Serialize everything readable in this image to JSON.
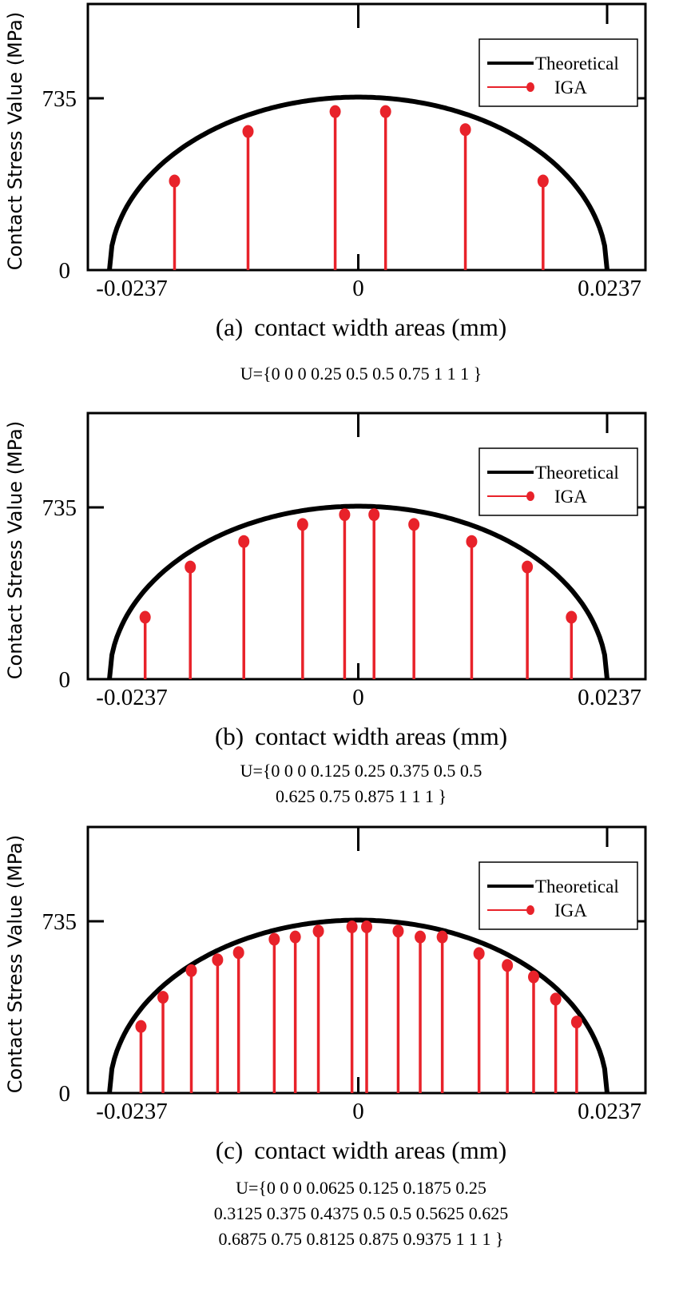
{
  "chart_data": [
    {
      "type": "scatter",
      "panel_label": "(a)",
      "xlabel": "contact width areas (mm)",
      "ylabel": "Contact Stress Value (MPa)",
      "x_ticks": [
        "-0.0237",
        "0",
        "0.0237"
      ],
      "y_ticks": [
        "0",
        "735"
      ],
      "knot_vector": [
        "U={0 0 0 0.25 0.5 0.5 0.75 1 1 1 }"
      ],
      "legend": {
        "placement": "top-right",
        "entries": [
          "Theoretical",
          "IGA"
        ]
      },
      "series": [
        {
          "name": "Theoretical",
          "style": "line",
          "color": "#000000",
          "peak": 740,
          "half_width": 0.0237
        },
        {
          "name": "IGA",
          "style": "stem",
          "color": "#e8222a",
          "x": [
            -0.0175,
            -0.0105,
            -0.0022,
            0.0026,
            0.0102,
            0.0176
          ],
          "y": [
            381,
            593,
            678,
            678,
            601,
            381
          ]
        }
      ]
    },
    {
      "type": "scatter",
      "panel_label": "(b)",
      "xlabel": "contact width areas (mm)",
      "ylabel": "Contact Stress Value (MPa)",
      "x_ticks": [
        "-0.0237",
        "0",
        "0.0237"
      ],
      "y_ticks": [
        "0",
        "735"
      ],
      "knot_vector": [
        "U={0 0 0 0.125 0.25 0.375 0.5 0.5",
        "0.625 0.75 0.875 1 1 1 }"
      ],
      "legend": {
        "placement": "top-right",
        "entries": [
          "Theoretical",
          "IGA"
        ]
      },
      "series": [
        {
          "name": "Theoretical",
          "style": "line",
          "color": "#000000",
          "peak": 740,
          "half_width": 0.0237
        },
        {
          "name": "IGA",
          "style": "stem",
          "color": "#e8222a",
          "x": [
            -0.0203,
            -0.016,
            -0.0109,
            -0.0053,
            -0.0013,
            0.0015,
            0.0053,
            0.0108,
            0.0161,
            0.0203
          ],
          "y": [
            265,
            480,
            589,
            662,
            704,
            704,
            662,
            589,
            480,
            265
          ]
        }
      ]
    },
    {
      "type": "scatter",
      "panel_label": "(c)",
      "xlabel": "contact width areas (mm)",
      "ylabel": "Contact Stress Value (MPa)",
      "x_ticks": [
        "-0.0237",
        "0",
        "0.0237"
      ],
      "y_ticks": [
        "0",
        "735"
      ],
      "knot_vector": [
        "U={0 0 0 0.0625 0.125 0.1875 0.25",
        "0.3125 0.375 0.4375 0.5 0.5 0.5625 0.625",
        "0.6875 0.75 0.8125 0.875 0.9375 1 1 1 }"
      ],
      "legend": {
        "placement": "top-right",
        "entries": [
          "Theoretical",
          "IGA"
        ]
      },
      "series": [
        {
          "name": "Theoretical",
          "style": "line",
          "color": "#000000",
          "peak": 740,
          "half_width": 0.0237
        },
        {
          "name": "IGA",
          "style": "stem",
          "color": "#e8222a",
          "x": [
            -0.0207,
            -0.0186,
            -0.0159,
            -0.0134,
            -0.0114,
            -0.008,
            -0.006,
            -0.0038,
            -0.0006,
            0.0008,
            0.0038,
            0.0059,
            0.008,
            0.0115,
            0.0142,
            0.0167,
            0.0188,
            0.0208
          ],
          "y": [
            285,
            410,
            524,
            570,
            601,
            658,
            668,
            693,
            711,
            711,
            693,
            668,
            668,
            597,
            546,
            497,
            402,
            304
          ]
        }
      ]
    }
  ]
}
